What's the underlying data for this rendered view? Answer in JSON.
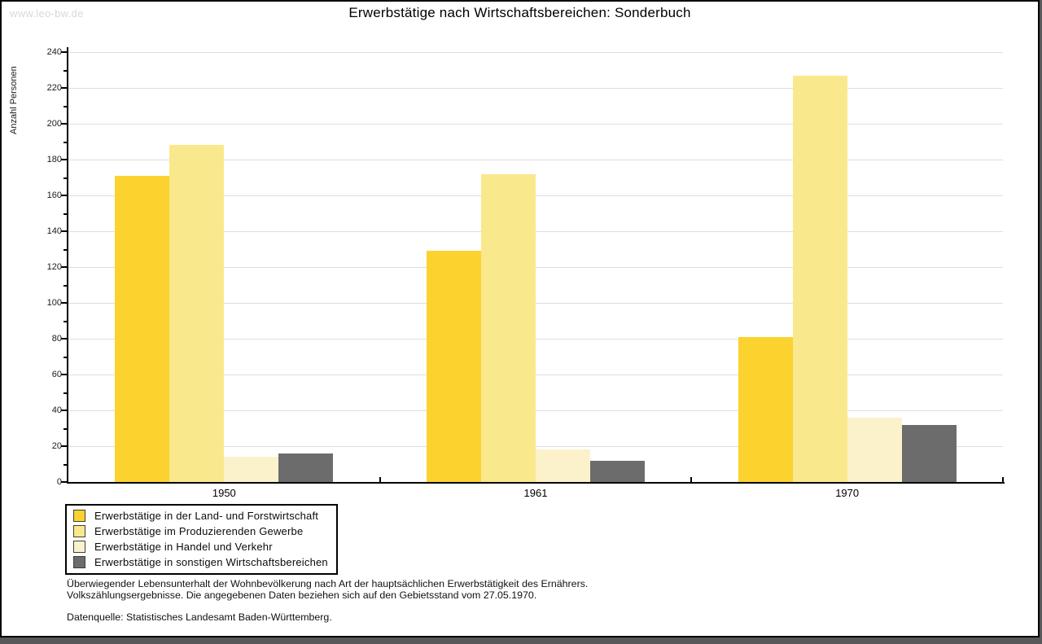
{
  "watermark": "www.leo-bw.de",
  "title": "Erwerbstätige nach Wirtschaftsbereichen: Sonderbuch",
  "chart_data": {
    "type": "bar",
    "title": "Erwerbstätige nach Wirtschaftsbereichen: Sonderbuch",
    "xlabel": "",
    "ylabel": "Anzahl Personen",
    "ylim": [
      0,
      240
    ],
    "ytick_step": 20,
    "ytick_minor_step": 10,
    "grid": true,
    "legend_position": "bottom-left",
    "categories": [
      "1950",
      "1961",
      "1970"
    ],
    "series": [
      {
        "name": "Erwerbstätige in der Land- und Forstwirtschaft",
        "color": "#fcd22f",
        "values": [
          171,
          129,
          81
        ]
      },
      {
        "name": "Erwerbstätige im Produzierenden Gewerbe",
        "color": "#fae88d",
        "values": [
          188,
          172,
          227
        ]
      },
      {
        "name": "Erwerbstätige in Handel und Verkehr",
        "color": "#fbf2cb",
        "values": [
          14,
          18,
          36
        ]
      },
      {
        "name": "Erwerbstätige in sonstigen Wirtschaftsbereichen",
        "color": "#6c6c6c",
        "values": [
          16,
          12,
          32
        ]
      }
    ]
  },
  "notes": {
    "line1": "Überwiegender Lebensunterhalt der Wohnbevölkerung nach Art der hauptsächlichen Erwerbstätigkeit des Ernährers.",
    "line2": "Volkszählungsergebnisse. Die angegebenen Daten beziehen sich auf den Gebietsstand vom 27.05.1970.",
    "source": "Datenquelle: Statistisches Landesamt Baden-Württemberg."
  },
  "colors": {
    "axis": "#000000",
    "grid": "#dedede",
    "watermark": "#d8d8d8",
    "frame_shadow": "#58585a"
  }
}
